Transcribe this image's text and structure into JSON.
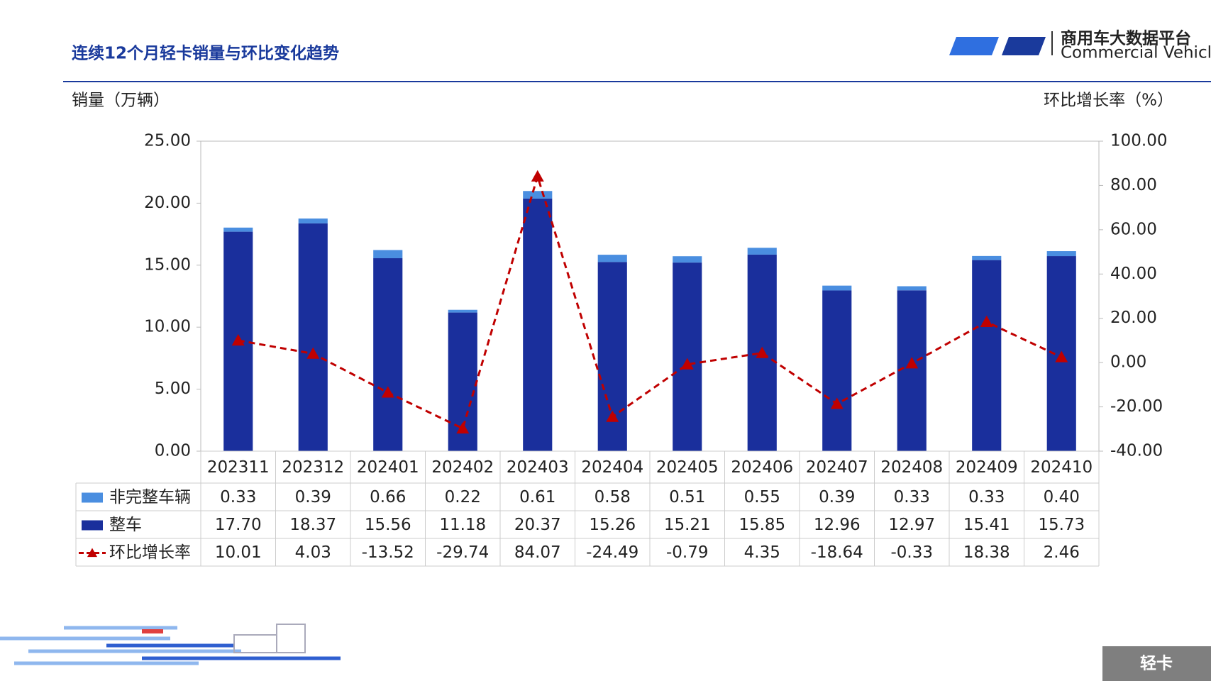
{
  "header": {
    "title": "连续12个月轻卡销量与环比变化趋势",
    "logo_name": "商用车大数据平台",
    "logo_subtitle": "Commercial Vehicle Big Data Platform"
  },
  "chart_data": {
    "type": "bar-line",
    "y_axis_title": "销量（万辆）",
    "y2_axis_title": "环比增长率（%）",
    "categories": [
      "202311",
      "202312",
      "202401",
      "202402",
      "202403",
      "202404",
      "202405",
      "202406",
      "202407",
      "202408",
      "202409",
      "202410"
    ],
    "series": [
      {
        "name": "非完整车辆",
        "color": "#4a8ee0",
        "type": "bar",
        "values": [
          0.33,
          0.39,
          0.66,
          0.22,
          0.61,
          0.58,
          0.51,
          0.55,
          0.39,
          0.33,
          0.33,
          0.4
        ],
        "value_labels": [
          "0.33",
          "0.39",
          "0.66",
          "0.22",
          "0.61",
          "0.58",
          "0.51",
          "0.55",
          "0.39",
          "0.33",
          "0.33",
          "0.40"
        ]
      },
      {
        "name": "整车",
        "color": "#1a2f9c",
        "type": "bar",
        "values": [
          17.7,
          18.37,
          15.56,
          11.18,
          20.37,
          15.26,
          15.21,
          15.85,
          12.96,
          12.97,
          15.41,
          15.73
        ],
        "value_labels": [
          "17.70",
          "18.37",
          "15.56",
          "11.18",
          "20.37",
          "15.26",
          "15.21",
          "15.85",
          "12.96",
          "12.97",
          "15.41",
          "15.73"
        ]
      },
      {
        "name": "环比增长率",
        "color": "#c00000",
        "type": "line",
        "axis": "y2",
        "values": [
          10.01,
          4.03,
          -13.52,
          -29.74,
          84.07,
          -24.49,
          -0.79,
          4.35,
          -18.64,
          -0.33,
          18.38,
          2.46
        ]
      }
    ],
    "ylim": [
      0,
      25
    ],
    "yticks": [
      {
        "value": 0,
        "label": "0.00"
      },
      {
        "value": 5,
        "label": "5.00"
      },
      {
        "value": 10,
        "label": "10.00"
      },
      {
        "value": 15,
        "label": "15.00"
      },
      {
        "value": 20,
        "label": "20.00"
      },
      {
        "value": 25,
        "label": "25.00"
      }
    ],
    "y2lim": [
      -40,
      100
    ],
    "y2ticks": [
      {
        "value": -40,
        "label": "-40.00"
      },
      {
        "value": -20,
        "label": "-20.00"
      },
      {
        "value": 0,
        "label": "0.00"
      },
      {
        "value": 20,
        "label": "20.00"
      },
      {
        "value": 40,
        "label": "40.00"
      },
      {
        "value": 60,
        "label": "60.00"
      },
      {
        "value": 80,
        "label": "80.00"
      },
      {
        "value": 100,
        "label": "100.00"
      }
    ]
  },
  "footer": {
    "label": "轻卡"
  }
}
